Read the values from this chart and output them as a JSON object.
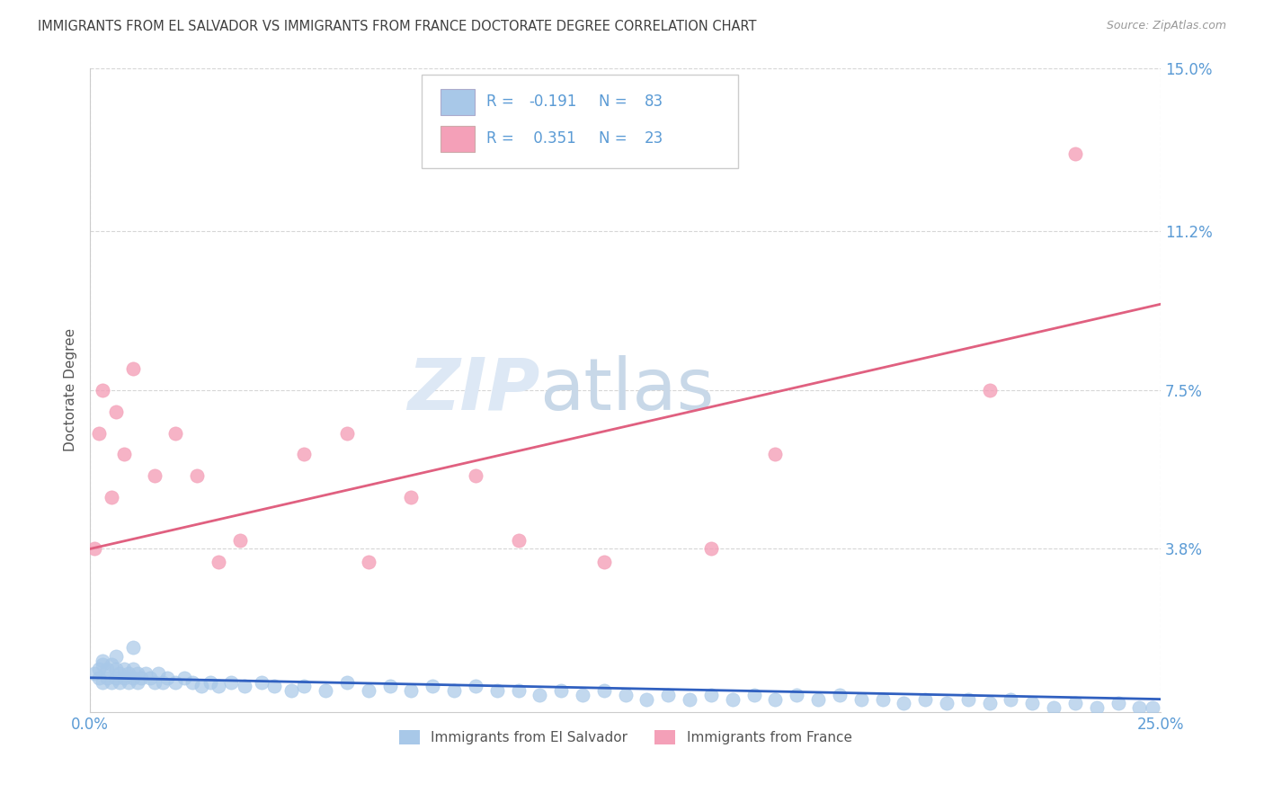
{
  "title": "IMMIGRANTS FROM EL SALVADOR VS IMMIGRANTS FROM FRANCE DOCTORATE DEGREE CORRELATION CHART",
  "source": "Source: ZipAtlas.com",
  "ylabel": "Doctorate Degree",
  "x_min": 0.0,
  "x_max": 0.25,
  "y_min": 0.0,
  "y_max": 0.15,
  "y_ticks": [
    0.038,
    0.075,
    0.112,
    0.15
  ],
  "y_tick_labels": [
    "3.8%",
    "7.5%",
    "11.2%",
    "15.0%"
  ],
  "x_tick_labels": [
    "0.0%",
    "25.0%"
  ],
  "blue_R": -0.191,
  "blue_N": 83,
  "pink_R": 0.351,
  "pink_N": 23,
  "blue_color": "#a8c8e8",
  "pink_color": "#f4a0b8",
  "blue_line_color": "#3060c0",
  "pink_line_color": "#e06080",
  "legend_label_blue": "Immigrants from El Salvador",
  "legend_label_pink": "Immigrants from France",
  "watermark_zip": "ZIP",
  "watermark_atlas": "atlas",
  "background_color": "#ffffff",
  "grid_color": "#cccccc",
  "title_color": "#404040",
  "axis_label_color": "#5b9bd5",
  "legend_text_color": "#5b9bd5",
  "blue_x": [
    0.001,
    0.002,
    0.002,
    0.003,
    0.003,
    0.004,
    0.004,
    0.005,
    0.005,
    0.006,
    0.006,
    0.007,
    0.007,
    0.008,
    0.008,
    0.009,
    0.009,
    0.01,
    0.01,
    0.011,
    0.011,
    0.012,
    0.013,
    0.014,
    0.015,
    0.016,
    0.017,
    0.018,
    0.02,
    0.022,
    0.024,
    0.026,
    0.028,
    0.03,
    0.033,
    0.036,
    0.04,
    0.043,
    0.047,
    0.05,
    0.055,
    0.06,
    0.065,
    0.07,
    0.075,
    0.08,
    0.085,
    0.09,
    0.095,
    0.1,
    0.105,
    0.11,
    0.115,
    0.12,
    0.125,
    0.13,
    0.135,
    0.14,
    0.145,
    0.15,
    0.155,
    0.16,
    0.165,
    0.17,
    0.175,
    0.18,
    0.185,
    0.19,
    0.195,
    0.2,
    0.205,
    0.21,
    0.215,
    0.22,
    0.225,
    0.23,
    0.235,
    0.24,
    0.245,
    0.248,
    0.003,
    0.006,
    0.01
  ],
  "blue_y": [
    0.009,
    0.01,
    0.008,
    0.011,
    0.007,
    0.01,
    0.008,
    0.011,
    0.007,
    0.01,
    0.008,
    0.009,
    0.007,
    0.01,
    0.008,
    0.009,
    0.007,
    0.01,
    0.008,
    0.009,
    0.007,
    0.008,
    0.009,
    0.008,
    0.007,
    0.009,
    0.007,
    0.008,
    0.007,
    0.008,
    0.007,
    0.006,
    0.007,
    0.006,
    0.007,
    0.006,
    0.007,
    0.006,
    0.005,
    0.006,
    0.005,
    0.007,
    0.005,
    0.006,
    0.005,
    0.006,
    0.005,
    0.006,
    0.005,
    0.005,
    0.004,
    0.005,
    0.004,
    0.005,
    0.004,
    0.003,
    0.004,
    0.003,
    0.004,
    0.003,
    0.004,
    0.003,
    0.004,
    0.003,
    0.004,
    0.003,
    0.003,
    0.002,
    0.003,
    0.002,
    0.003,
    0.002,
    0.003,
    0.002,
    0.001,
    0.002,
    0.001,
    0.002,
    0.001,
    0.001,
    0.012,
    0.013,
    0.015
  ],
  "pink_x": [
    0.001,
    0.002,
    0.003,
    0.005,
    0.006,
    0.008,
    0.01,
    0.015,
    0.02,
    0.025,
    0.03,
    0.035,
    0.05,
    0.06,
    0.065,
    0.075,
    0.09,
    0.1,
    0.12,
    0.145,
    0.16,
    0.21,
    0.23
  ],
  "pink_y": [
    0.038,
    0.065,
    0.075,
    0.05,
    0.07,
    0.06,
    0.08,
    0.055,
    0.065,
    0.055,
    0.035,
    0.04,
    0.06,
    0.065,
    0.035,
    0.05,
    0.055,
    0.04,
    0.035,
    0.038,
    0.06,
    0.075,
    0.13
  ],
  "blue_line_x": [
    0.0,
    0.25
  ],
  "blue_line_y": [
    0.008,
    0.003
  ],
  "pink_line_x": [
    0.0,
    0.25
  ],
  "pink_line_y": [
    0.038,
    0.095
  ]
}
